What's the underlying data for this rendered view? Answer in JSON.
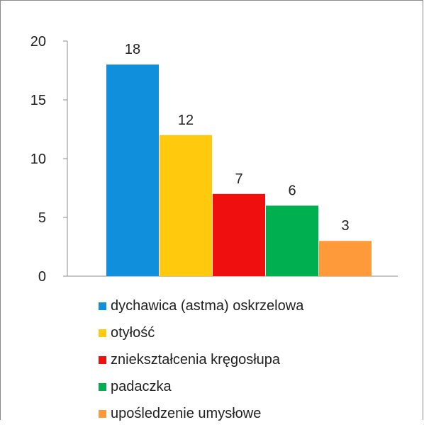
{
  "chart_data": {
    "type": "bar",
    "categories": [
      "dychawica (astma) oskrzelowa",
      "otyłość",
      "zniekształcenia kręgosłupa",
      "padaczka",
      "upośledzenie umysłowe"
    ],
    "values": [
      18,
      12,
      7,
      6,
      3
    ],
    "colors": [
      "#0f8fdc",
      "#ffc90e",
      "#ef0f0f",
      "#00b050",
      "#ff9a3a"
    ],
    "ylim": [
      0,
      20
    ],
    "yticks": [
      "0",
      "5",
      "10",
      "15",
      "20"
    ],
    "grid": false,
    "legend_position": "bottom",
    "data_labels": [
      "18",
      "12",
      "7",
      "6",
      "3"
    ]
  }
}
